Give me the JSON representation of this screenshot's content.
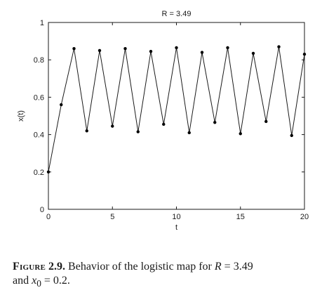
{
  "chart_data": {
    "type": "line",
    "title": "R = 3.49",
    "xlabel": "t",
    "ylabel": "x(t)",
    "xlim": [
      0,
      20
    ],
    "ylim": [
      0,
      1
    ],
    "xticks": [
      0,
      5,
      10,
      15,
      20
    ],
    "yticks": [
      0,
      0.2,
      0.4,
      0.6,
      0.8,
      1
    ],
    "grid": false,
    "markers": true,
    "colors": {
      "line": "#1a1a1a",
      "marker": "#000000",
      "axes": "#1a1a1a"
    },
    "series": [
      {
        "x": [
          0,
          1,
          2,
          3,
          4,
          5,
          6,
          7,
          8,
          9,
          10,
          11,
          12,
          13,
          14,
          15,
          16,
          17,
          18,
          19,
          20
        ],
        "y": [
          0.2,
          0.56,
          0.86,
          0.42,
          0.85,
          0.445,
          0.86,
          0.415,
          0.845,
          0.455,
          0.865,
          0.41,
          0.84,
          0.465,
          0.865,
          0.405,
          0.835,
          0.47,
          0.87,
          0.395,
          0.83
        ]
      }
    ]
  },
  "caption": {
    "label": "Figure",
    "number": "2.9.",
    "text_1": " Behavior of the logistic map for ",
    "r_symbol": "R",
    "text_2": " = 3.49",
    "text_3": "and ",
    "x_symbol": "x",
    "x_subscript": "0",
    "text_4": " = 0.2."
  }
}
